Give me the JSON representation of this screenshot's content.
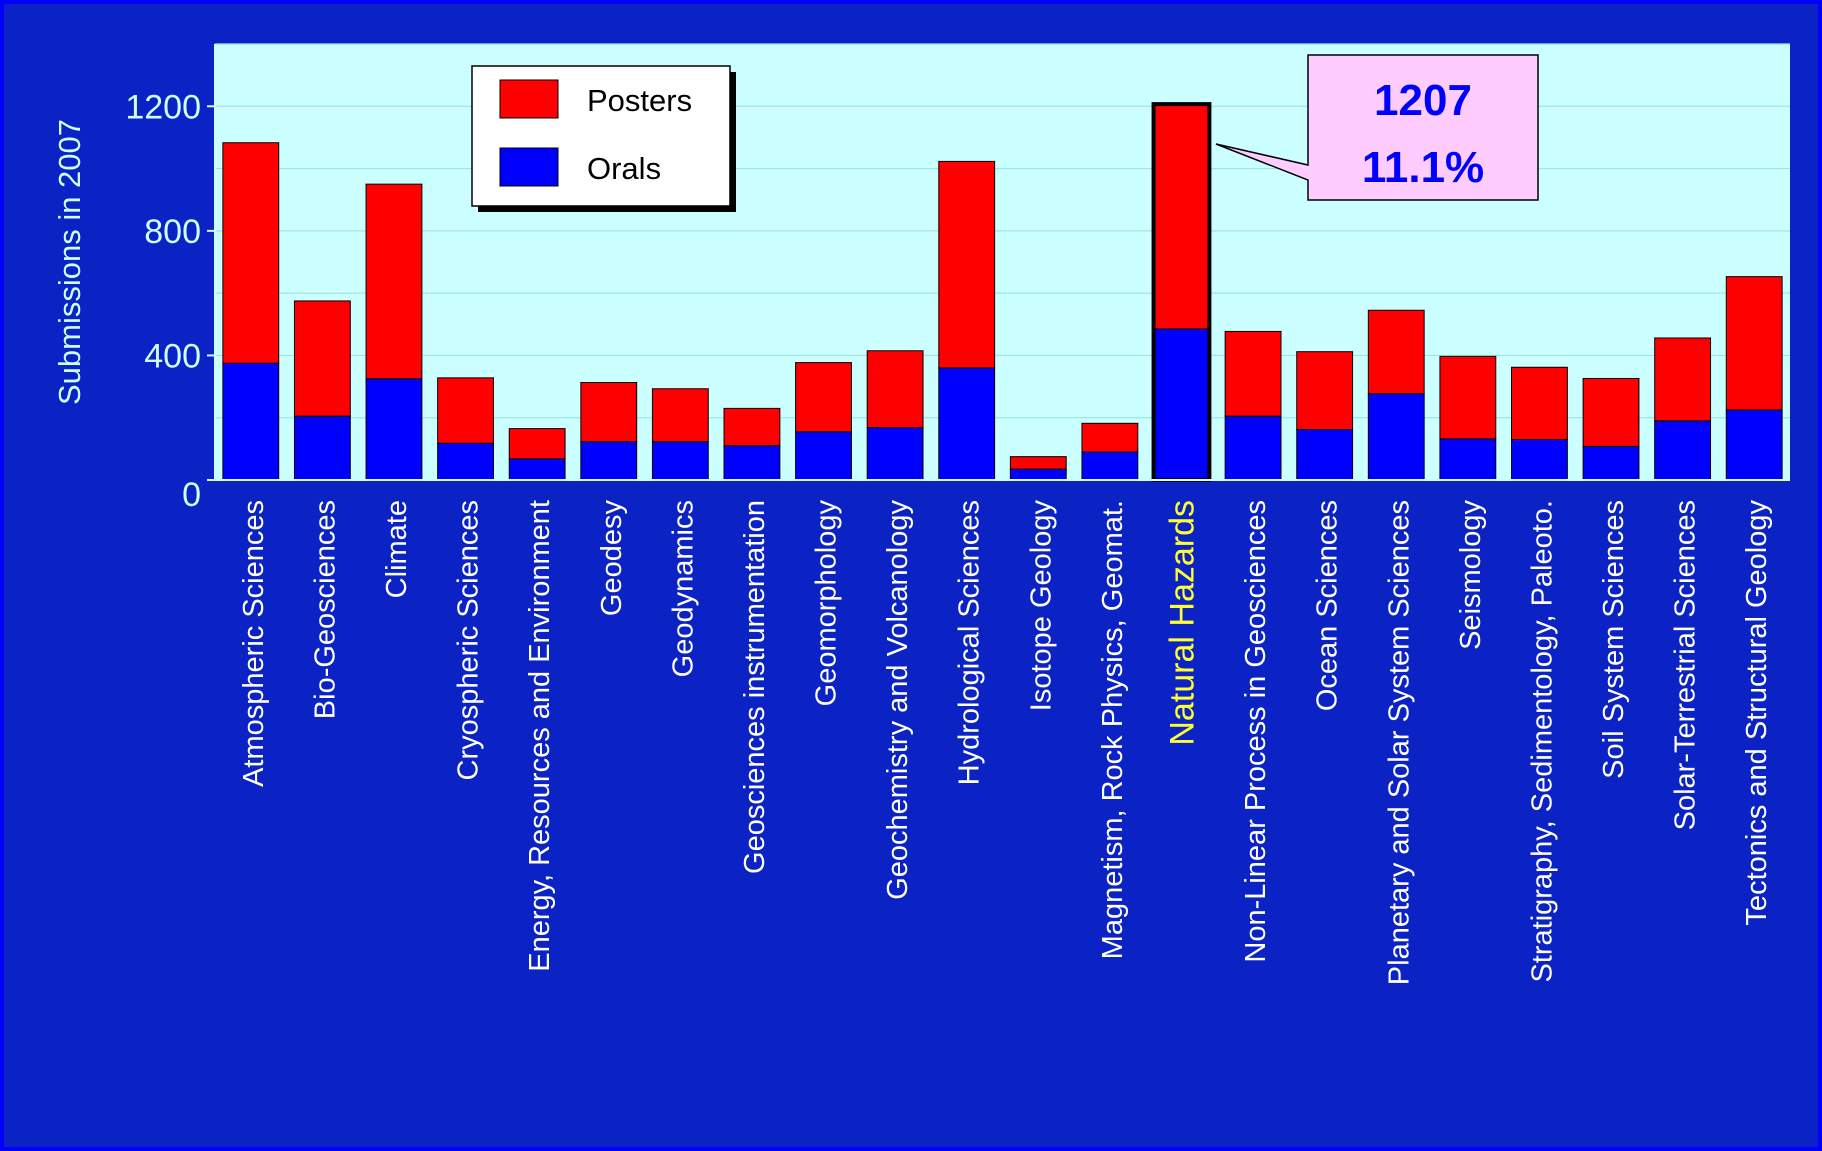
{
  "chart_data": {
    "type": "bar",
    "stacked": true,
    "ylabel": "Submissions in 2007",
    "ylim": [
      0,
      1400
    ],
    "yticks": [
      0,
      400,
      800,
      1200
    ],
    "grid": true,
    "legend_position": "top-left",
    "highlight_category": "Natural Hazards",
    "categories": [
      "Atmospheric Sciences",
      "Bio-Geosciences",
      "Climate",
      "Cryospheric Sciences",
      "Energy, Resources and Environment",
      "Geodesy",
      "Geodynamics",
      "Geosciences instrumentation",
      "Geomorphology",
      "Geochemistry and Volcanology",
      "Hydrological Sciences",
      "Isotope Geology",
      "Magnetism, Rock Physics, Geomat.",
      "Natural Hazards",
      "Non-Linear Process in Geosciences",
      "Ocean Sciences",
      "Planetary and Solar System Sciences",
      "Seismology",
      "Stratigraphy, Sedimentology, Paleoto.",
      "Soil System Sciences",
      "Solar-Terrestrial Sciences",
      "Tectonics and Structural Geology"
    ],
    "series": [
      {
        "name": "Orals",
        "color": "#0000ff",
        "values": [
          375,
          205,
          325,
          118,
          68,
          123,
          123,
          110,
          155,
          168,
          360,
          35,
          90,
          485,
          205,
          162,
          277,
          132,
          130,
          108,
          190,
          225
        ]
      },
      {
        "name": "Posters",
        "color": "#ff0000",
        "values": [
          708,
          370,
          625,
          210,
          97,
          190,
          170,
          120,
          222,
          247,
          663,
          40,
          92,
          722,
          272,
          250,
          268,
          265,
          232,
          218,
          266,
          428
        ]
      }
    ],
    "axis_colors": {
      "plot_background": "#ccffff",
      "frame_background": "#0b22c4",
      "grid": "#9ee6e6",
      "highlight_label": "#ffff33",
      "label_text": "#ffffff"
    }
  },
  "legend": {
    "items": [
      {
        "label": "Posters",
        "color": "#ff0000"
      },
      {
        "label": "Orals",
        "color": "#0000ff"
      }
    ]
  },
  "callout": {
    "line1": "1207",
    "line2": "11.1%",
    "color": "#0000ff",
    "background": "#ffccff"
  }
}
